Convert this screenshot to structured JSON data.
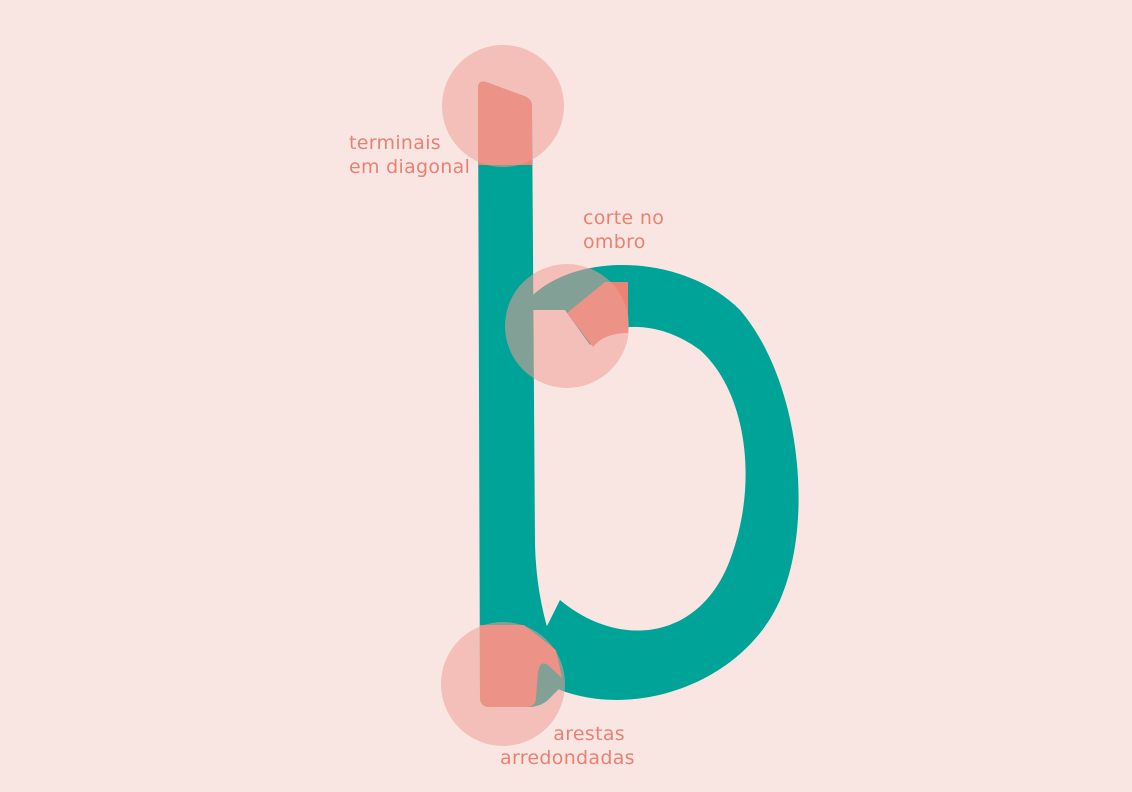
{
  "colors": {
    "background": "#f9e6e2",
    "glyph": "#00a398",
    "highlight": "#e98476",
    "circle": "#ee9f96"
  },
  "annotations": [
    {
      "line1": "terminais",
      "line2": "em diagonal"
    },
    {
      "line1": "corte no",
      "line2": "ombro"
    },
    {
      "line1": "arestas",
      "line2": "arredondadas"
    }
  ]
}
